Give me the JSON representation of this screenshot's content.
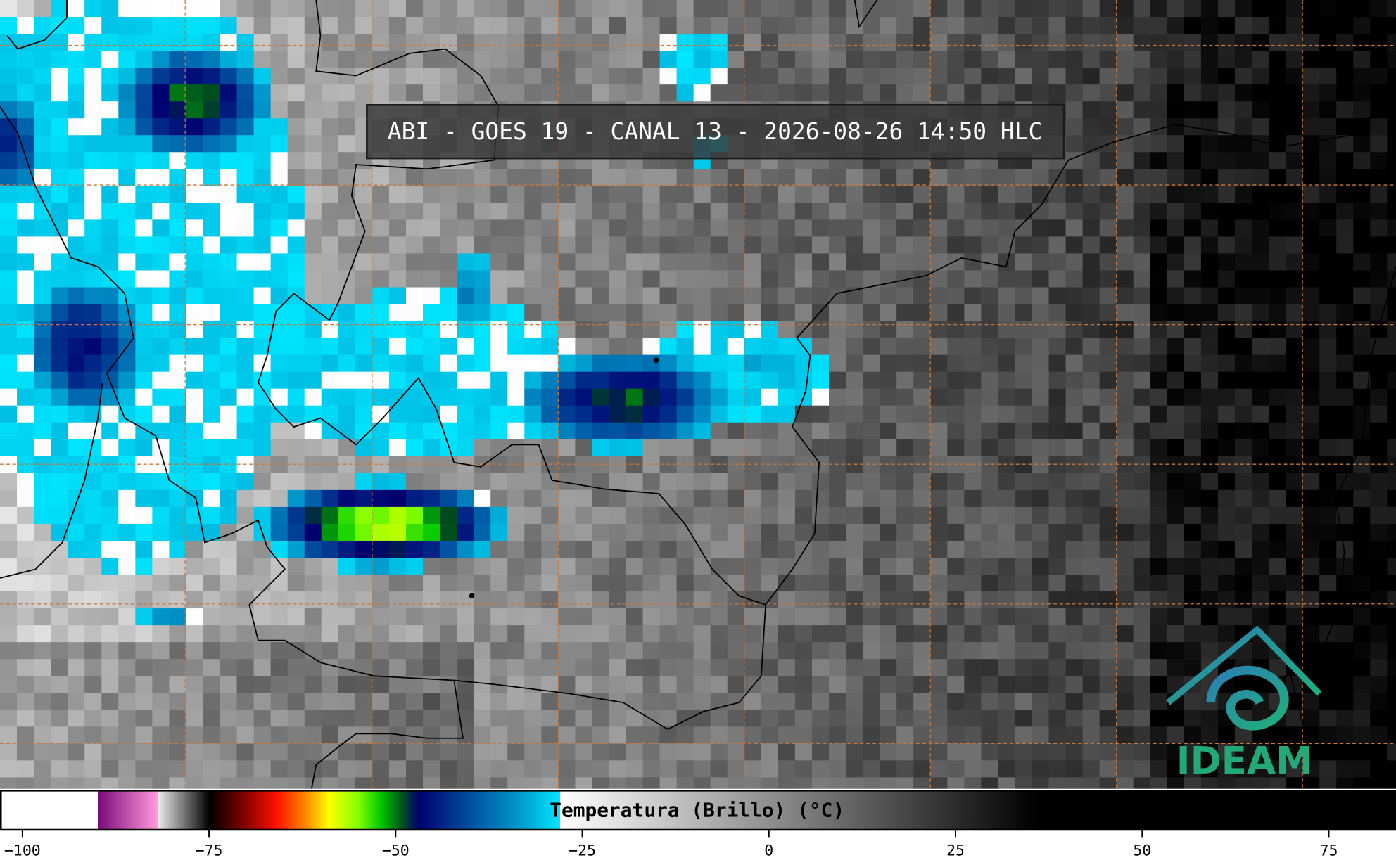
{
  "map": {
    "title": "ABI - GOES 19 - CANAL 13 - 2026-08-26 14:50 HLC",
    "logo": "IDEAM",
    "colorbar": {
      "label": "Temperatura (Brillo) (°C)",
      "xlim": [
        -103,
        84
      ],
      "xticks": [
        {
          "value": -100,
          "label": "−100"
        },
        {
          "value": -75,
          "label": "−75"
        },
        {
          "value": -50,
          "label": "−50"
        },
        {
          "value": -25,
          "label": "−25"
        },
        0,
        25,
        50,
        75
      ],
      "colors": [
        {
          "value": -103,
          "color": "#ffffff"
        },
        {
          "value": -90,
          "color": "#ffffff"
        },
        {
          "value": -90,
          "color": "#7a0a7a"
        },
        {
          "value": -82,
          "color": "#ff9add"
        },
        {
          "value": -82,
          "color": "#eeeeee"
        },
        {
          "value": -75,
          "color": "#000000"
        },
        {
          "value": -71,
          "color": "#700000"
        },
        {
          "value": -66,
          "color": "#ff1000"
        },
        {
          "value": -62,
          "color": "#ff8c00"
        },
        {
          "value": -59,
          "color": "#ffff00"
        },
        {
          "value": -55,
          "color": "#80ff00"
        },
        {
          "value": -52,
          "color": "#00c800"
        },
        {
          "value": -49,
          "color": "#004a20"
        },
        {
          "value": -47,
          "color": "#000070"
        },
        {
          "value": -40,
          "color": "#0050a0"
        },
        {
          "value": -33,
          "color": "#00a0d0"
        },
        {
          "value": -28,
          "color": "#00e6ff"
        },
        {
          "value": -28,
          "color": "#ffffff"
        },
        {
          "value": 36,
          "color": "#000000"
        },
        {
          "value": 84,
          "color": "#000000"
        }
      ]
    }
  }
}
